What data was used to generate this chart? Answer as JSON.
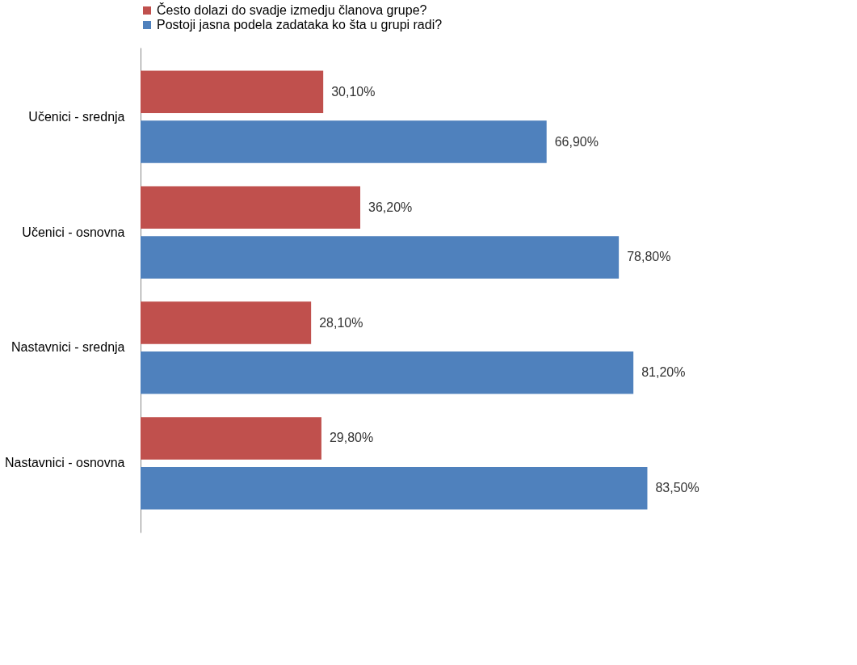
{
  "chart_data": {
    "type": "bar",
    "orientation": "horizontal",
    "categories": [
      "Učenici - srednja",
      "Učenici - osnovna",
      "Nastavnici - srednja",
      "Nastavnici - osnovna"
    ],
    "series": [
      {
        "name": "Često dolazi do svadje izmedju članova grupe?",
        "color": "#c0504d",
        "values": [
          30.1,
          36.2,
          28.1,
          29.8
        ],
        "value_labels": [
          "30,10%",
          "36,20%",
          "28,10%",
          "29,80%"
        ]
      },
      {
        "name": "Postoji jasna podela zadataka ko šta u grupi radi?",
        "color": "#4f81bd",
        "values": [
          66.9,
          78.8,
          81.2,
          83.5
        ],
        "value_labels": [
          "66,90%",
          "78,80%",
          "81,20%",
          "83,50%"
        ]
      }
    ],
    "legend": "top",
    "grid": false,
    "tick_labels": "y"
  }
}
